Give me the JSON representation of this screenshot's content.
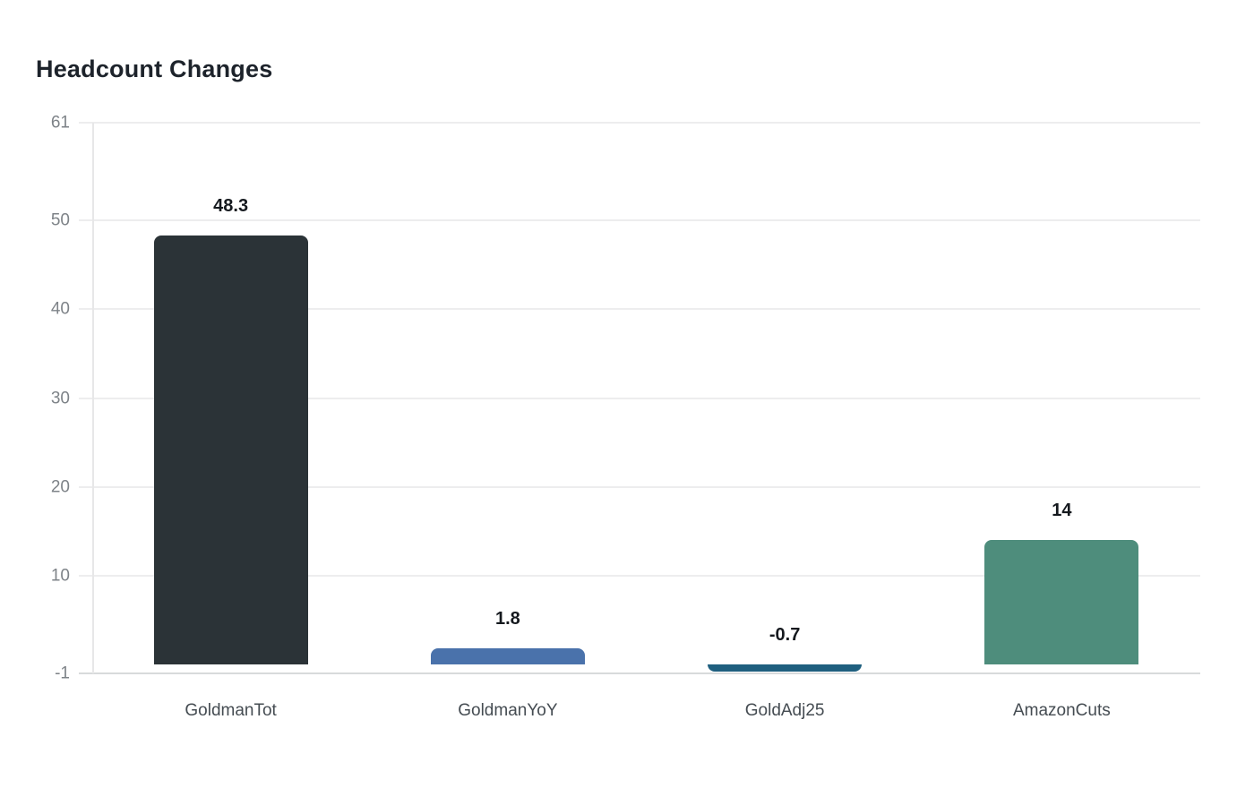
{
  "chart": {
    "title": "Headcount Changes"
  },
  "chart_data": {
    "type": "bar",
    "title": "Headcount Changes",
    "categories": [
      "GoldmanTot",
      "GoldmanYoY",
      "GoldAdj25",
      "AmazonCuts"
    ],
    "values": [
      48.3,
      1.8,
      -0.7,
      14
    ],
    "value_labels": [
      "48.3",
      "1.8",
      "-0.7",
      "14"
    ],
    "bar_colors": [
      "#2b3337",
      "#4a72ab",
      "#1f5f7f",
      "#4e8d7c"
    ],
    "xlabel": "",
    "ylabel": "",
    "ylim": [
      -1,
      61
    ],
    "yticks": [
      -1,
      10,
      20,
      30,
      40,
      50,
      61
    ],
    "grid": true,
    "legend": false,
    "colors": {
      "background": "#ffffff",
      "gridline": "#ededee",
      "baseline": "#d8dadb",
      "axis_line": "#e7e7e8",
      "y_tick_label": "#7e8388",
      "x_tick_label": "#454c52",
      "value_label": "#15191e",
      "title": "#1d232b"
    }
  }
}
